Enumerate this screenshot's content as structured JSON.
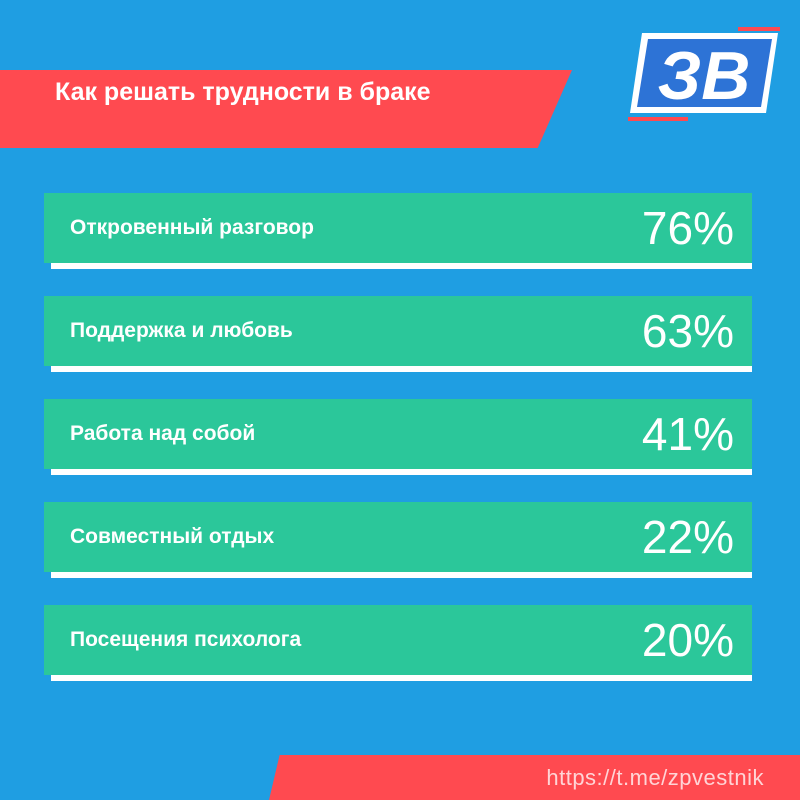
{
  "header": {
    "title": "Как решать трудности в браке",
    "logo_text": "ЗВ"
  },
  "chart_data": {
    "type": "bar",
    "title": "Как решать трудности в браке",
    "categories": [
      "Откровенный разговор",
      "Поддержка и любовь",
      "Работа над собой",
      "Совместный отдых",
      "Посещения психолога"
    ],
    "values": [
      76,
      63,
      41,
      22,
      20
    ],
    "value_labels": [
      "76%",
      "63%",
      "41%",
      "22%",
      "20%"
    ],
    "unit": "%",
    "ylim": [
      0,
      100
    ]
  },
  "footer": {
    "link": "https://t.me/zpvestnik"
  },
  "colors": {
    "background": "#1f9ee2",
    "banner_red": "#ff4a50",
    "bar_green": "#2bc79a",
    "text_white": "#ffffff"
  }
}
